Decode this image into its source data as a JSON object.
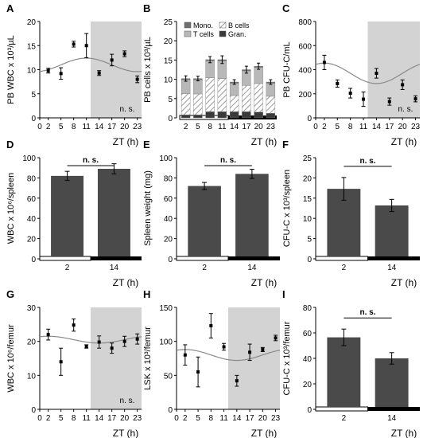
{
  "chart_data": [
    {
      "id": "A",
      "panel_label": "A",
      "type": "scatter",
      "ylabel": "PB WBC x 10³/µL",
      "xlabel": "ZT (h)",
      "xlim": [
        0,
        24
      ],
      "ylim": [
        0,
        20
      ],
      "xticks": [
        0,
        2,
        5,
        8,
        11,
        14,
        17,
        20,
        23
      ],
      "yticks": [
        0,
        5,
        10,
        15,
        20
      ],
      "dark_span": [
        12,
        24
      ],
      "fit": {
        "mesor": 11.0,
        "amplitude": 1.4,
        "peak_zt": 11
      },
      "points": [
        {
          "x": 2,
          "y": 9.8,
          "err": 0.5
        },
        {
          "x": 5,
          "y": 9.2,
          "err": 1.2
        },
        {
          "x": 8,
          "y": 15.3,
          "err": 0.6
        },
        {
          "x": 11,
          "y": 15.0,
          "err": 2.5
        },
        {
          "x": 14,
          "y": 9.3,
          "err": 0.5
        },
        {
          "x": 17,
          "y": 12.0,
          "err": 1.2
        },
        {
          "x": 20,
          "y": 13.3,
          "err": 0.6
        },
        {
          "x": 23,
          "y": 8.0,
          "err": 0.7
        }
      ],
      "note": "n. s."
    },
    {
      "id": "B",
      "panel_label": "B",
      "type": "bar",
      "ylabel": "PB cells x 10³/µL",
      "xlabel": "ZT (h)",
      "ylim": [
        0,
        25
      ],
      "yticks": [
        0,
        5,
        10,
        15,
        20,
        25
      ],
      "categories": [
        2,
        5,
        8,
        11,
        14,
        17,
        20,
        23
      ],
      "series": [
        {
          "name": "Gran.",
          "values": [
            0.8,
            0.8,
            1.6,
            1.6,
            1.6,
            1.6,
            1.5,
            1.2
          ]
        },
        {
          "name": "B cells",
          "values": [
            5.5,
            5.4,
            8.8,
            8.6,
            4.2,
            6.8,
            7.4,
            4.4
          ]
        },
        {
          "name": "T cells",
          "values": [
            3.6,
            3.7,
            4.4,
            4.6,
            3.2,
            3.8,
            4.2,
            3.4
          ]
        },
        {
          "name": "Mono.",
          "values": [
            0.3,
            0.3,
            0.3,
            0.3,
            0.3,
            0.3,
            0.3,
            0.3
          ]
        }
      ],
      "errors": [
        0.7,
        0.6,
        0.8,
        1.0,
        0.6,
        0.9,
        0.8,
        0.6
      ],
      "light_span": [
        2,
        11
      ],
      "dark_span": [
        14,
        23
      ]
    },
    {
      "id": "C",
      "panel_label": "C",
      "type": "scatter",
      "ylabel": "PB CFU-C/mL",
      "xlabel": "ZT (h)",
      "xlim": [
        0,
        24
      ],
      "ylim": [
        0,
        800
      ],
      "xticks": [
        0,
        2,
        5,
        8,
        11,
        14,
        17,
        20,
        23
      ],
      "yticks": [
        0,
        200,
        400,
        600,
        800
      ],
      "dark_span": [
        12,
        24
      ],
      "fit": {
        "mesor": 370,
        "amplitude": 85,
        "peak_zt": 2
      },
      "points": [
        {
          "x": 2,
          "y": 460,
          "err": 60
        },
        {
          "x": 5,
          "y": 285,
          "err": 30
        },
        {
          "x": 8,
          "y": 205,
          "err": 40
        },
        {
          "x": 11,
          "y": 155,
          "err": 60
        },
        {
          "x": 14,
          "y": 370,
          "err": 40
        },
        {
          "x": 17,
          "y": 135,
          "err": 30
        },
        {
          "x": 20,
          "y": 275,
          "err": 40
        },
        {
          "x": 23,
          "y": 158,
          "err": 25
        }
      ],
      "note": "n. s."
    },
    {
      "id": "D",
      "panel_label": "D",
      "type": "bar",
      "ylabel": "WBC x 10⁶/spleen",
      "xlabel": "ZT (h)",
      "ylim": [
        0,
        100
      ],
      "yticks": [
        0,
        20,
        40,
        60,
        80,
        100
      ],
      "categories": [
        2,
        14
      ],
      "values": [
        82,
        89
      ],
      "errors": [
        4.5,
        5
      ],
      "note": "n. s."
    },
    {
      "id": "E",
      "panel_label": "E",
      "type": "bar",
      "ylabel": "Spleen weight (mg)",
      "xlabel": "ZT (h)",
      "ylim": [
        0,
        100
      ],
      "yticks": [
        0,
        20,
        40,
        60,
        80,
        100
      ],
      "categories": [
        2,
        14
      ],
      "values": [
        72,
        84
      ],
      "errors": [
        3.5,
        4.5
      ],
      "note": "n. s."
    },
    {
      "id": "F",
      "panel_label": "F",
      "type": "bar",
      "ylabel": "CFU-C x 10³/spleen",
      "xlabel": "ZT (h)",
      "ylim": [
        0,
        25
      ],
      "yticks": [
        0,
        5,
        10,
        15,
        20,
        25
      ],
      "categories": [
        2,
        14
      ],
      "values": [
        17.3,
        13.2
      ],
      "errors": [
        2.8,
        1.5
      ],
      "note": "n. s."
    },
    {
      "id": "G",
      "panel_label": "G",
      "type": "scatter",
      "ylabel": "WBC x 10⁶/femur",
      "xlabel": "ZT (h)",
      "xlim": [
        0,
        24
      ],
      "ylim": [
        0,
        30
      ],
      "xticks": [
        0,
        2,
        5,
        8,
        11,
        14,
        17,
        20,
        23
      ],
      "yticks": [
        0,
        10,
        20,
        30
      ],
      "dark_span": [
        12,
        24
      ],
      "fit": {
        "mesor": 20.5,
        "amplitude": 1.0,
        "peak_zt": 2
      },
      "points": [
        {
          "x": 2,
          "y": 22.0,
          "err": 1.6
        },
        {
          "x": 5,
          "y": 14.0,
          "err": 4.0
        },
        {
          "x": 8,
          "y": 24.8,
          "err": 1.8
        },
        {
          "x": 11,
          "y": 18.5,
          "err": 0.5
        },
        {
          "x": 14,
          "y": 19.8,
          "err": 1.8
        },
        {
          "x": 17,
          "y": 18.0,
          "err": 1.5
        },
        {
          "x": 20,
          "y": 20.0,
          "err": 1.5
        },
        {
          "x": 23,
          "y": 20.7,
          "err": 1.5
        }
      ],
      "note": "n. s."
    },
    {
      "id": "H",
      "panel_label": "H",
      "type": "scatter",
      "ylabel": "LSK x 10³/femur",
      "xlabel": "ZT (h)",
      "xlim": [
        0,
        24
      ],
      "ylim": [
        0,
        150
      ],
      "xticks": [
        0,
        2,
        5,
        8,
        11,
        14,
        17,
        20,
        23
      ],
      "yticks": [
        0,
        50,
        100,
        150
      ],
      "dark_span": [
        12,
        24
      ],
      "fit": {
        "mesor": 80,
        "amplitude": 8,
        "peak_zt": 2
      },
      "points": [
        {
          "x": 2,
          "y": 80,
          "err": 15
        },
        {
          "x": 5,
          "y": 55,
          "err": 22
        },
        {
          "x": 8,
          "y": 123,
          "err": 18
        },
        {
          "x": 11,
          "y": 92,
          "err": 5
        },
        {
          "x": 14,
          "y": 42,
          "err": 8
        },
        {
          "x": 17,
          "y": 84,
          "err": 12
        },
        {
          "x": 20,
          "y": 88,
          "err": 3
        },
        {
          "x": 23,
          "y": 105,
          "err": 4
        }
      ]
    },
    {
      "id": "I",
      "panel_label": "I",
      "type": "bar",
      "ylabel": "CFU-C x 10³/femur",
      "xlabel": "ZT (h)",
      "ylim": [
        0,
        80
      ],
      "yticks": [
        0,
        20,
        40,
        60,
        80
      ],
      "categories": [
        2,
        14
      ],
      "values": [
        56.5,
        40
      ],
      "errors": [
        6.5,
        4.5
      ],
      "note": "n. s."
    }
  ],
  "colors": {
    "bar_dark": "#4a4a4a",
    "gran": "#3a3a3a",
    "tcells": "#b8b8b8",
    "mono": "#6e6e6e",
    "shade": "#d3d3d3",
    "fit": "#8a8a8a"
  }
}
